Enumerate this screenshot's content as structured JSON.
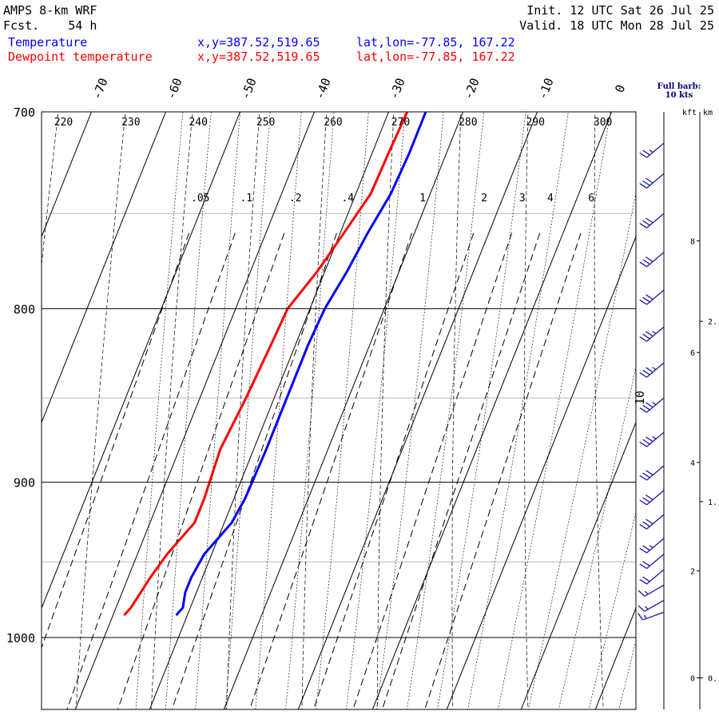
{
  "header": {
    "model": "AMPS 8-km WRF",
    "fcst": "Fcst.    54 h",
    "init": "Init. 12 UTC Sat 26 Jul 25",
    "valid": "Valid. 18 UTC Mon 28 Jul 25"
  },
  "legend": [
    {
      "name": "Temperature",
      "color": "#0000ff",
      "xy": "x,y=387.52,519.65",
      "latlon": "lat,lon=-77.85, 167.22"
    },
    {
      "name": "Dewpoint temperature",
      "color": "#ff0000",
      "xy": "x,y=387.52,519.65",
      "latlon": "lat,lon=-77.85, 167.22"
    }
  ],
  "barb_note": {
    "line1": "Full barb:",
    "line2": "10 kts"
  },
  "height_axis": {
    "kft_label": "kft",
    "km_label": "km"
  },
  "chart_data": {
    "type": "line",
    "diagram": "skew-T log-p",
    "y_axis": {
      "label": "",
      "ticks": [
        700,
        800,
        900,
        1000
      ],
      "range": [
        1050,
        700
      ],
      "scale": "log"
    },
    "temp_ticks": [
      -70,
      -60,
      -50,
      -40,
      -30,
      -20,
      -10,
      0
    ],
    "dry_adiabat_labels": [
      220,
      230,
      240,
      250,
      260,
      270,
      280,
      290,
      300
    ],
    "mixing_ratio_labels": [
      ".05",
      ".1",
      ".2",
      ".4",
      "1",
      "2",
      "3",
      "4",
      "6"
    ],
    "extra_label": "10",
    "kft_ticks": [
      0,
      2,
      4,
      6,
      8
    ],
    "km_ticks": [
      "0.",
      "1.",
      "2."
    ],
    "series": [
      {
        "name": "Temperature",
        "color": "#0000ff",
        "points": [
          [
            985,
            -31.5
          ],
          [
            980,
            -31
          ],
          [
            970,
            -31.5
          ],
          [
            960,
            -31.5
          ],
          [
            945,
            -31
          ],
          [
            935,
            -30
          ],
          [
            925,
            -29
          ],
          [
            910,
            -28.5
          ],
          [
            880,
            -28.3
          ],
          [
            850,
            -28.3
          ],
          [
            820,
            -28.3
          ],
          [
            800,
            -28
          ],
          [
            780,
            -27
          ],
          [
            760,
            -26.3
          ],
          [
            740,
            -25.3
          ],
          [
            720,
            -25
          ],
          [
            700,
            -25
          ]
        ]
      },
      {
        "name": "Dewpoint temperature",
        "color": "#ff0000",
        "points": [
          [
            985,
            -38.5
          ],
          [
            980,
            -38
          ],
          [
            960,
            -37
          ],
          [
            945,
            -36
          ],
          [
            925,
            -34
          ],
          [
            910,
            -34
          ],
          [
            880,
            -34.5
          ],
          [
            850,
            -33.8
          ],
          [
            820,
            -33.3
          ],
          [
            800,
            -33
          ],
          [
            780,
            -31
          ],
          [
            760,
            -29.5
          ],
          [
            740,
            -28
          ],
          [
            720,
            -27.8
          ],
          [
            700,
            -27.5
          ]
        ]
      }
    ],
    "wind_barbs": [
      {
        "p": 983,
        "dir": 250,
        "kts": 15
      },
      {
        "p": 975,
        "dir": 240,
        "kts": 15
      },
      {
        "p": 965,
        "dir": 240,
        "kts": 15
      },
      {
        "p": 955,
        "dir": 230,
        "kts": 20
      },
      {
        "p": 945,
        "dir": 230,
        "kts": 20
      },
      {
        "p": 935,
        "dir": 230,
        "kts": 25
      },
      {
        "p": 920,
        "dir": 230,
        "kts": 30
      },
      {
        "p": 905,
        "dir": 230,
        "kts": 30
      },
      {
        "p": 890,
        "dir": 230,
        "kts": 30
      },
      {
        "p": 870,
        "dir": 230,
        "kts": 35
      },
      {
        "p": 850,
        "dir": 230,
        "kts": 35
      },
      {
        "p": 830,
        "dir": 230,
        "kts": 35
      },
      {
        "p": 810,
        "dir": 230,
        "kts": 35
      },
      {
        "p": 790,
        "dir": 230,
        "kts": 30
      },
      {
        "p": 770,
        "dir": 230,
        "kts": 30
      },
      {
        "p": 750,
        "dir": 230,
        "kts": 30
      },
      {
        "p": 730,
        "dir": 230,
        "kts": 30
      },
      {
        "p": 715,
        "dir": 230,
        "kts": 25
      }
    ]
  }
}
